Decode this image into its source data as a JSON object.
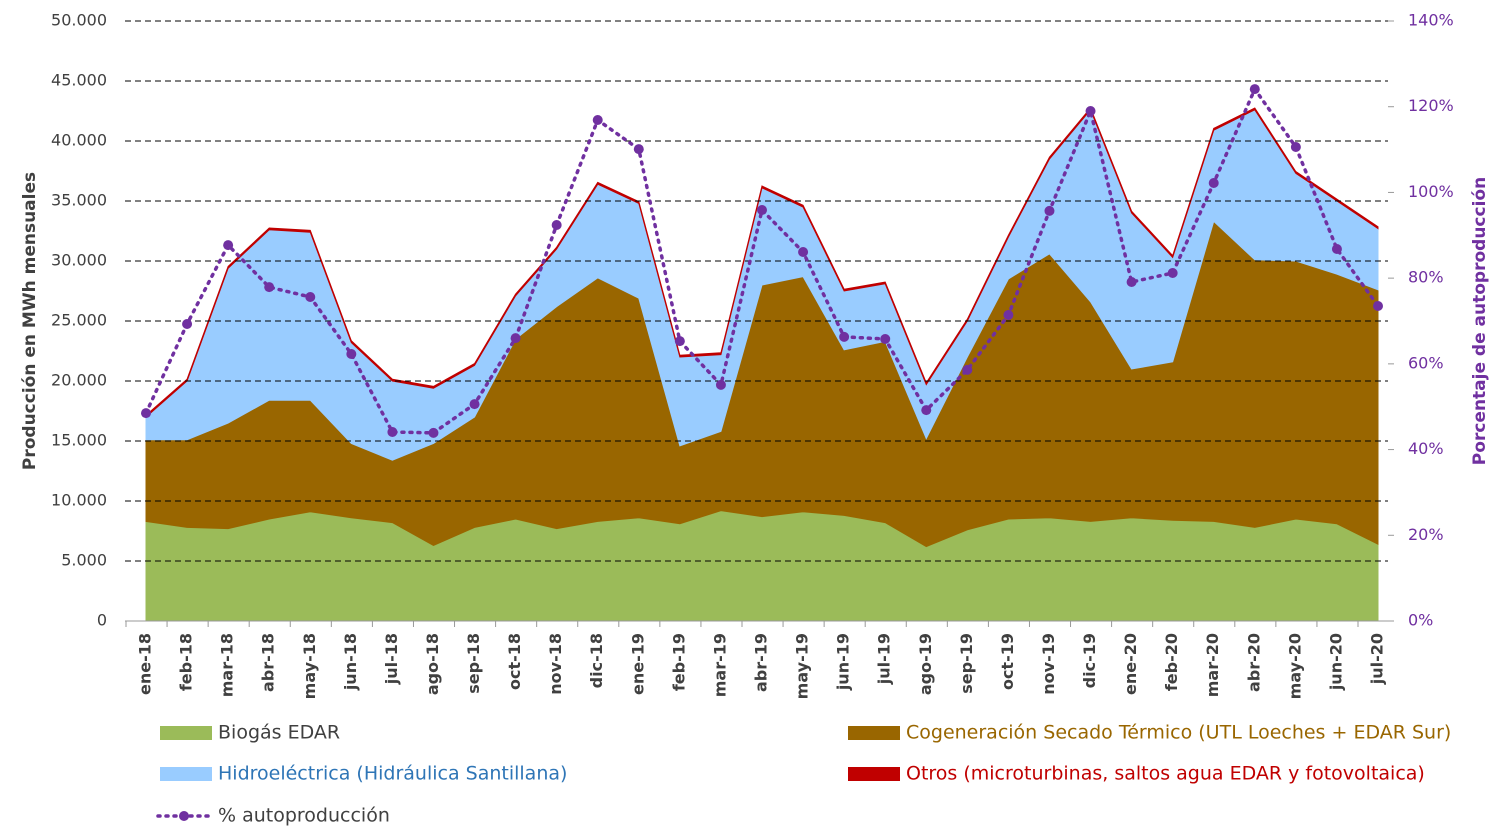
{
  "chart_data": {
    "type": "stacked_area_line",
    "y_label": "Producción en MWh mensuales",
    "y2_label": "Porcentaje de autoproducción",
    "categories": [
      "ene-18",
      "feb-18",
      "mar-18",
      "abr-18",
      "may-18",
      "jun-18",
      "jul-18",
      "ago-18",
      "sep-18",
      "oct-18",
      "nov-18",
      "dic-18",
      "ene-19",
      "feb-19",
      "mar-19",
      "abr-19",
      "may-19",
      "jun-19",
      "jul-19",
      "ago-19",
      "sep-19",
      "oct-19",
      "nov-19",
      "dic-19",
      "ene-20",
      "feb-20",
      "mar-20",
      "abr-20",
      "may-20",
      "jun-20",
      "jul-20"
    ],
    "series": [
      {
        "name": "Biogás EDAR",
        "color": "#9bbb59",
        "label_color": "#404040",
        "values": [
          8300,
          7800,
          7700,
          8500,
          9100,
          8600,
          8200,
          6300,
          7800,
          8500,
          7700,
          8300,
          8600,
          8100,
          9200,
          8700,
          9100,
          8800,
          8200,
          6200,
          7600,
          8500,
          8600,
          8300,
          8600,
          8400,
          8300,
          7800,
          8500,
          8100,
          6400
        ]
      },
      {
        "name": "Cogeneración Secado Térmico (UTL Loeches + EDAR Sur)",
        "color": "#996600",
        "label_color": "#996600",
        "values": [
          6800,
          7300,
          8800,
          9900,
          9300,
          6200,
          5200,
          8500,
          9200,
          15000,
          18500,
          20300,
          18300,
          6500,
          6600,
          19300,
          19600,
          13800,
          15100,
          9000,
          14400,
          20000,
          22000,
          18300,
          12400,
          13200,
          25000,
          22300,
          21500,
          20800,
          21200
        ]
      },
      {
        "name": "Hidroeléctrica (Hidráulica Santillana)",
        "color": "#99ccff",
        "label_color": "#2e75b6",
        "values": [
          1900,
          4900,
          12900,
          14200,
          14000,
          8400,
          6600,
          4600,
          4300,
          3600,
          4800,
          7800,
          7900,
          7400,
          6400,
          8100,
          5800,
          4900,
          4800,
          4500,
          3000,
          3500,
          7900,
          16000,
          13000,
          8700,
          7600,
          12500,
          7300,
          6100,
          5100
        ]
      },
      {
        "name": "Otros (microturbinas, saltos agua EDAR y fotovoltaica)",
        "color": "#c00000",
        "label_color": "#c00000",
        "values": [
          150,
          150,
          150,
          150,
          150,
          150,
          150,
          150,
          150,
          150,
          150,
          150,
          150,
          150,
          150,
          150,
          150,
          150,
          150,
          150,
          150,
          150,
          150,
          150,
          150,
          150,
          150,
          150,
          150,
          150,
          150
        ]
      },
      {
        "name": "% autoproducción",
        "color": "#7030a0",
        "label_color": "#404040",
        "axis": "y2",
        "values": [
          48.5,
          69.3,
          87.7,
          77.9,
          75.6,
          62.3,
          44.1,
          43.9,
          50.6,
          66.0,
          92.4,
          116.9,
          110.1,
          65.3,
          55.1,
          95.9,
          86.1,
          66.3,
          65.8,
          49.2,
          58.6,
          71.4,
          95.7,
          119.0,
          79.1,
          81.2,
          102.2,
          124.1,
          110.6,
          86.8,
          73.5
        ]
      }
    ],
    "ylim": [
      0,
      50000
    ],
    "yticks": [
      0,
      {
        "value": 5000,
        "label": "5.000"
      },
      {
        "value": 10000,
        "label": "10.000"
      },
      {
        "value": 15000,
        "label": "15.000"
      },
      {
        "value": 20000,
        "label": "20.000"
      },
      {
        "value": 25000,
        "label": "25.000"
      },
      {
        "value": 30000,
        "label": "30.000"
      },
      {
        "value": 35000,
        "label": "35.000"
      },
      {
        "value": 40000,
        "label": "40.000"
      },
      {
        "value": 45000,
        "label": "45.000"
      },
      {
        "value": 50000,
        "label": "50.000"
      }
    ],
    "y2lim": [
      0,
      140
    ],
    "y2ticks": [
      {
        "value": 0,
        "label": "0%"
      },
      {
        "value": 20,
        "label": "20%"
      },
      {
        "value": 40,
        "label": "40%"
      },
      {
        "value": 60,
        "label": "60%"
      },
      {
        "value": 80,
        "label": "80%"
      },
      {
        "value": 100,
        "label": "100%"
      },
      {
        "value": 120,
        "label": "120%"
      },
      {
        "value": 140,
        "label": "140%"
      }
    ],
    "grid": true
  }
}
